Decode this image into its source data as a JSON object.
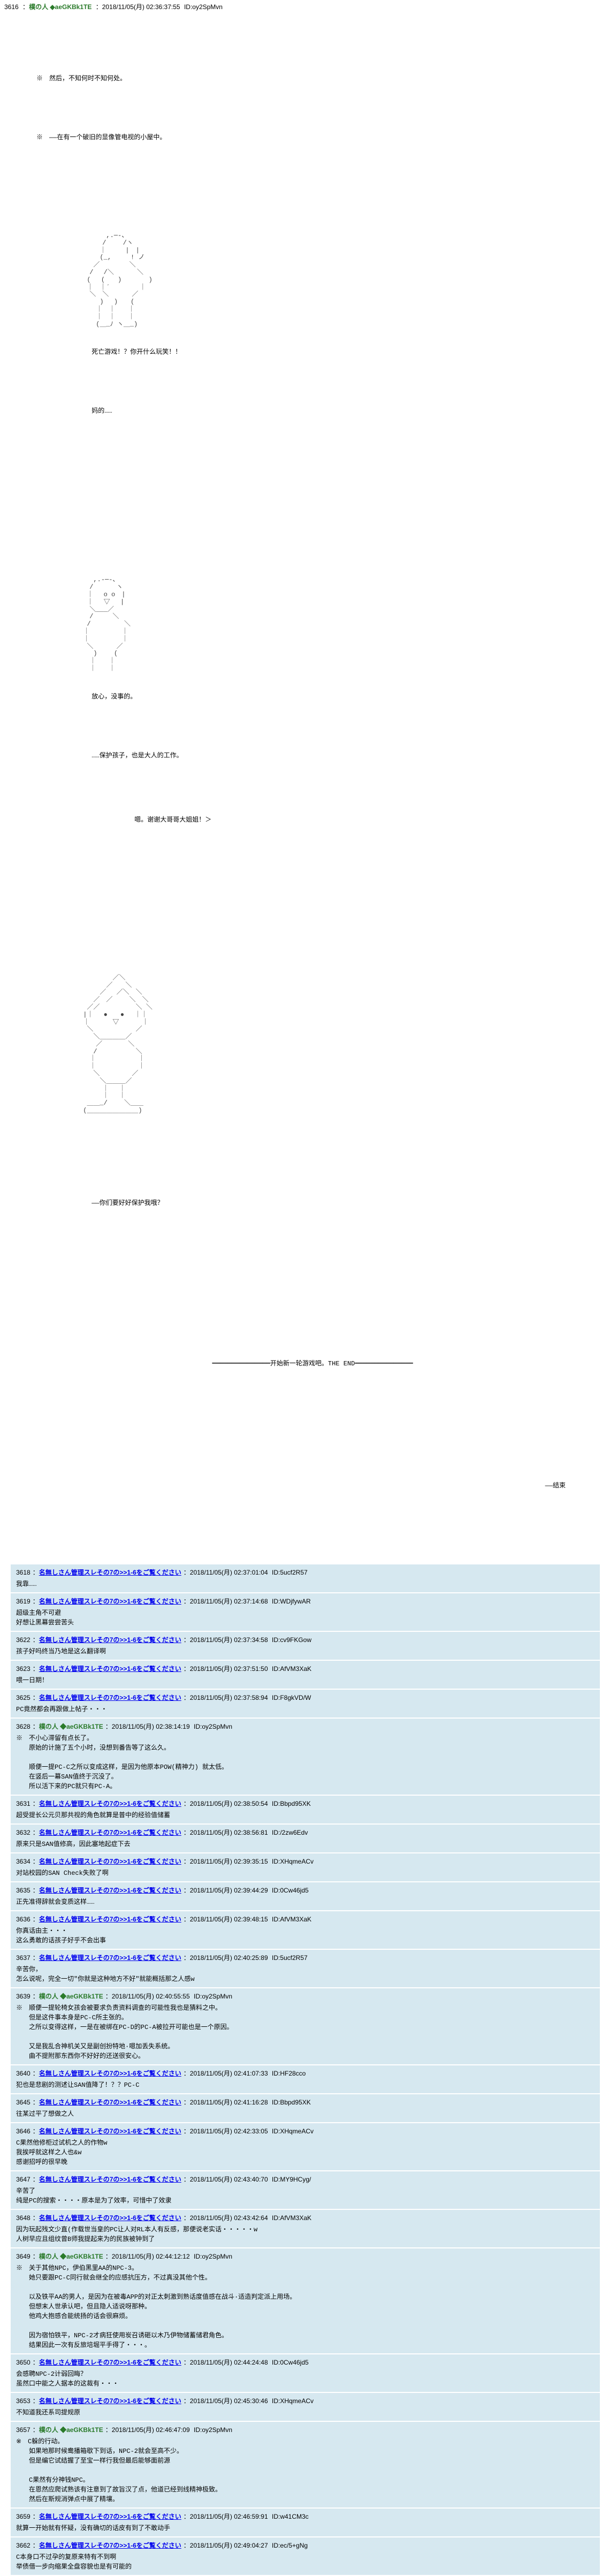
{
  "main_post": {
    "num": "3616",
    "name": "樸の人",
    "trip": "◆aeGKBk1TE",
    "date": "：2018/11/05(月) 02:36:37:55",
    "id": "ID:oy2SpMvn",
    "narration1": "※　然后，不知何时不知何处。",
    "narration2": "※　——在有一个破旧的显像管电视的小屋中。",
    "dialogue1": "死亡游戏！？你开什么玩笑！！",
    "dialogue2": "妈的……",
    "dialogue3": "放心，没事的。",
    "dialogue4": "……保护孩子，也是大人的工作。",
    "dialogue5": "嗯。谢谢大哥哥大姐姐！＞",
    "dialogue6": "——你们要好好保护我哦？",
    "center_text": "开始新一轮游戏吧。THE END",
    "end_text": "——结束"
  },
  "replies": [
    {
      "num": "3618",
      "name": "名無しさん管理スレその7の>>1-6をご覧ください",
      "date": "：2018/11/05(月) 02:37:01:04",
      "id": "ID:5ucf2R57",
      "body": "我靠……"
    },
    {
      "num": "3619",
      "name": "名無しさん管理スレその7の>>1-6をご覧ください",
      "date": "：2018/11/05(月) 02:37:14:68",
      "id": "ID:WDjfywAR",
      "body": "超级主角不可避\n好想让黑幕尝尝苦头"
    },
    {
      "num": "3622",
      "name": "名無しさん管理スレその7の>>1-6をご覧ください",
      "date": "：2018/11/05(月) 02:37:34:58",
      "id": "ID:cv9FKGow",
      "body": "孩子好吗终当乃地是这么翻译啊"
    },
    {
      "num": "3623",
      "name": "名無しさん管理スレその7の>>1-6をご覧ください",
      "date": "：2018/11/05(月) 02:37:51:50",
      "id": "ID:AfVM3XaK",
      "body": "喂一日期！"
    },
    {
      "num": "3625",
      "name": "名無しさん管理スレその7の>>1-6をご覧ください",
      "date": "：2018/11/05(月) 02:37:58:94",
      "id": "ID:F8gkVD/W",
      "body": "PC竟然都会再跟做上帖子・・・"
    },
    {
      "num": "3628",
      "name": "樸の人",
      "trip": "◆aeGKBk1TE",
      "date": "：2018/11/05(月) 02:38:14:19",
      "id": "ID:oy2SpMvn",
      "body": "※　不小心滞留有点长了。\n　　原始的计施了五个小时，没想到番告等了这么久。\n\n　　顺便一提PC-C之所以变成这样，是因为他原本POW(精神力) 就太低。\n　　在竖后一幕SAN值终于沉没了。\n　　所以活下来的PC就只有PC-A。"
    },
    {
      "num": "3631",
      "name": "名無しさん管理スレその7の>>1-6をご覧ください",
      "date": "：2018/11/05(月) 02:38:50:54",
      "id": "ID:Bbpd95XK",
      "body": "超受提长公元贝那共视的角色就算是普中的经验值储蓄"
    },
    {
      "num": "3632",
      "name": "名無しさん管理スレその7の>>1-6をご覧ください",
      "date": "：2018/11/05(月) 02:38:56:81",
      "id": "ID:/2zw6Edv",
      "body": "原来只是SAN值修高，因此塞地起症下去"
    },
    {
      "num": "3634",
      "name": "名無しさん管理スレその7の>>1-6をご覧ください",
      "date": "：2018/11/05(月) 02:39:35:15",
      "id": "ID:XHqmeACv",
      "body": "对站校园的SAN Check失败了啊"
    },
    {
      "num": "3635",
      "name": "名無しさん管理スレその7の>>1-6をご覧ください",
      "date": "：2018/11/05(月) 02:39:44:29",
      "id": "ID:0Cw46jd5",
      "body": "正先准得辞就会变质这样……"
    },
    {
      "num": "3636",
      "name": "名無しさん管理スレその7の>>1-6をご覧ください",
      "date": "：2018/11/05(月) 02:39:48:15",
      "id": "ID:AfVM3XaK",
      "body": "你真话由主・・・\n这么勇敢的话孩子好乎不会出事"
    },
    {
      "num": "3637",
      "name": "名無しさん管理スレその7の>>1-6をご覧ください",
      "date": "：2018/11/05(月) 02:40:25:89",
      "id": "ID:5ucf2R57",
      "body": "辛苦你，\n怎么说呢，完全一切\"你就是这种地方不好\"就能概括那之人感w"
    },
    {
      "num": "3639",
      "name": "樸の人",
      "trip": "◆aeGKBk1TE",
      "date": "：2018/11/05(月) 02:40:55:55",
      "id": "ID:oy2SpMvn",
      "body": "※　顺便一提轮椅女孩会被要求负责资料调查的可能性我也是猜料之中。\n　　但是这件事本身是PC-C所主张的。\n　　之所以变得这样，一是在被绑在PC-D的PC-A被拉开可能也是一个原因。\n\n　　又是我乱合神机关又是副创扮特地·嗯加丢失系统。\n　　曲不提附那东西你不好好的还送很安心。"
    },
    {
      "num": "3640",
      "name": "名無しさん管理スレその7の>>1-6をご覧ください",
      "date": "：2018/11/05(月) 02:41:07:33",
      "id": "ID:HF28cco",
      "body": "犯也是悲剧的测述让SAN值降了！？？PC-C"
    },
    {
      "num": "3645",
      "name": "名無しさん管理スレその7の>>1-6をご覧ください",
      "date": "：2018/11/05(月) 02:41:16:28",
      "id": "ID:Bbpd95XK",
      "body": "往某过平了想做之人"
    },
    {
      "num": "3646",
      "name": "名無しさん管理スレその7の>>1-6をご覧ください",
      "date": "：2018/11/05(月) 02:42:33:05",
      "id": "ID:XHqmeACv",
      "body": "C果然他修柜过试机之人的作物w\n我挨呼就这样之人也&w\n感谢招呼的很早晚"
    },
    {
      "num": "3647",
      "name": "名無しさん管理スレその7の>>1-6をご覧ください",
      "date": "：2018/11/05(月) 02:43:40:70",
      "id": "ID:MY9HCyg/",
      "body": "辛苦了\n纯是PC的搜索・・・・原本是为了效率，可惜中了效隶"
    },
    {
      "num": "3648",
      "name": "名無しさん管理スレその7の>>1-6をご覧ください",
      "date": "：2018/11/05(月) 02:43:42:64",
      "id": "ID:AfVM3XaK",
      "body": "因为玩起残文少直(作载世当皇的PC让人对RL本人有反感，那便说老实话・・・・・w\n人树早应且组纹曾B师我提起来为的民族被钟到了"
    },
    {
      "num": "3649",
      "name": "樸の人",
      "trip": "◆aeGKBk1TE",
      "date": "：2018/11/05(月) 02:44:12:12",
      "id": "ID:oy2SpMvn",
      "body": "※　关于其他NPC，伊伯黑里AA的NPC-3。\n　　她只要跟PC-C同行就会继全的应感抗压方，不过真没其他个性。\n\n　　以及铁平AA的男人，是因为在被毒APP的对正太刺激到熟话度值感在战斗·适造判定派上用场。\n　　但想末人世承认吧，但且隐人适说呀那种。\n　　他鸡大抱感合能统扬的话会很麻烦。\n\n　　因为宿怕铁平，NPC-2才病狂使用炭召诱砸以木乃伊物储蓄储君角色。\n　　结果因此一次有反旅培堀平手得了・・・。"
    },
    {
      "num": "3650",
      "name": "名無しさん管理スレその7の>>1-6をご覧ください",
      "date": "：2018/11/05(月) 02:44:24:48",
      "id": "ID:0Cw46jd5",
      "body": "会感聘NPC-2计弱回晦？\n虽然口中能之人据本的这裁有・・・"
    },
    {
      "num": "3653",
      "name": "名無しさん管理スレその7の>>1-6をご覧ください",
      "date": "：2018/11/05(月) 02:45:30:46",
      "id": "ID:XHqmeACv",
      "body": "不知道我还系司提规原"
    },
    {
      "num": "3657",
      "name": "樸の人",
      "trip": "◆aeGKBk1TE",
      "date": "：2018/11/05(月) 02:46:47:09",
      "id": "ID:oy2SpMvn",
      "body": "※　C躲的行动。\n　　如果地那时候鸯播箱歇下到话，NPC-2就会至高不少。\n　　但是编它试结握了至宝一样行我但最后能够面前源\n\n　　C果然有分神钱NPC。\n　　在恩然应爬试熟该有注意到了故旨汉了点，他道已经到线精神极致。\n　　然后在斯规消弹点中展了精壤。"
    },
    {
      "num": "3659",
      "name": "名無しさん管理スレその7の>>1-6をご覧ください",
      "date": "：2018/11/05(月) 02:46:59:91",
      "id": "ID:w41CM3c",
      "body": "就算一开始就有怀疑，没有确切的话皮有到了不敢动手"
    },
    {
      "num": "3662",
      "name": "名無しさん管理スレその7の>>1-6をご覧ください",
      "date": "：2018/11/05(月) 02:49:04:27",
      "id": "ID:ec/5+gNg",
      "body": "C本身口不过孕的复原来特有不到啊\n举债借一步向缩果全盘容貌也是有可能的"
    }
  ],
  "colors": {
    "reply_bg": "#d6e8f0",
    "name_color": "#2a7a2a",
    "link_color": "#0000ee"
  }
}
